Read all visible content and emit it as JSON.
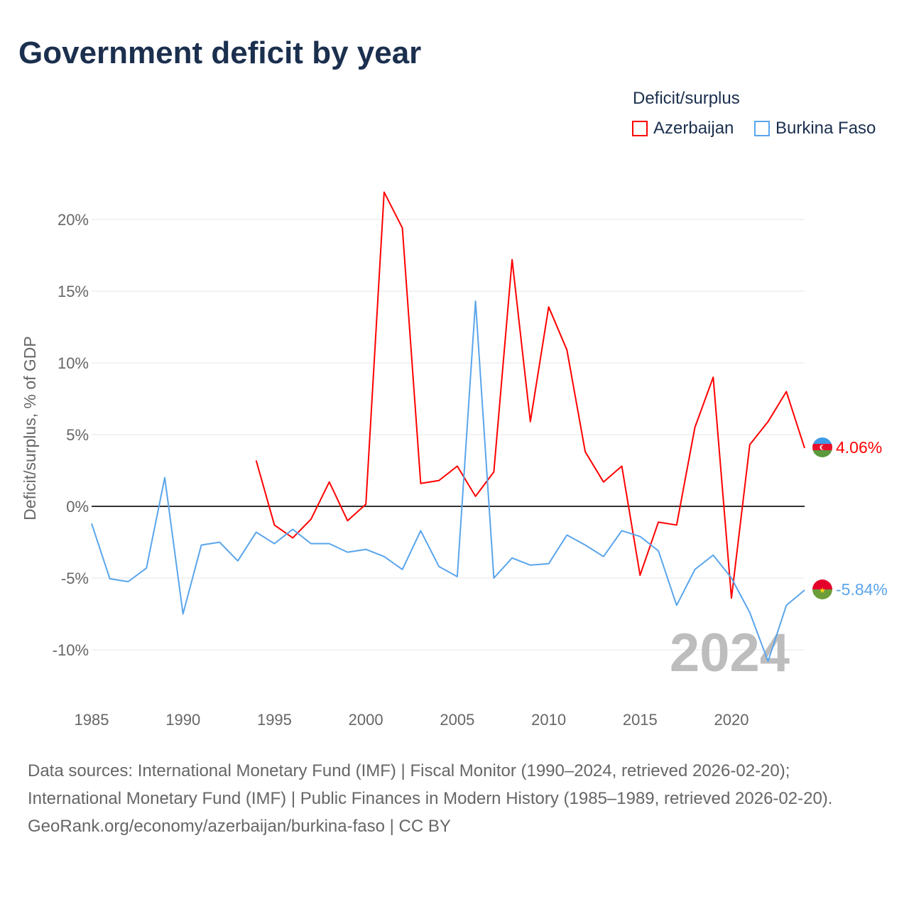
{
  "title": "Government deficit by year",
  "legend": {
    "title": "Deficit/surplus",
    "items": [
      {
        "name": "Azerbaijan",
        "color": "#ff0000"
      },
      {
        "name": "Burkina Faso",
        "color": "#5aa5ec"
      }
    ]
  },
  "watermark_year": "2024",
  "end_labels": {
    "azerbaijan": "4.06%",
    "burkina_faso": "-5.84%"
  },
  "sources": {
    "line1": "Data sources: International Monetary Fund (IMF) | Fiscal Monitor (1990–2024, retrieved 2026-02-20); International Monetary Fund (IMF) | Public Finances in Modern History (1985–1989, retrieved 2026-02-20).",
    "line2": "GeoRank.org/economy/azerbaijan/burkina-faso | CC BY"
  },
  "chart_data": {
    "type": "line",
    "title": "Government deficit by year",
    "xlabel": "",
    "ylabel": "Deficit/surplus, % of GDP",
    "xlim": [
      1985,
      2024
    ],
    "ylim": [
      -13,
      22.5
    ],
    "xticks": [
      1985,
      1990,
      1995,
      2000,
      2005,
      2010,
      2015,
      2020
    ],
    "yticks": [
      {
        "v": -10,
        "label": "-10%"
      },
      {
        "v": -5,
        "label": "-5%"
      },
      {
        "v": 0,
        "label": "0%"
      },
      {
        "v": 5,
        "label": "5%"
      },
      {
        "v": 10,
        "label": "10%"
      },
      {
        "v": 15,
        "label": "15%"
      },
      {
        "v": 20,
        "label": "20%"
      }
    ],
    "grid": true,
    "legend_position": "top-right",
    "series": [
      {
        "name": "Azerbaijan",
        "color": "#ff0000",
        "start": 1994,
        "values": [
          3.2,
          -1.3,
          -2.2,
          -0.9,
          1.7,
          -1.0,
          0.15,
          21.9,
          19.4,
          1.6,
          1.8,
          2.8,
          0.7,
          2.4,
          17.2,
          5.9,
          13.9,
          10.9,
          3.8,
          1.7,
          2.8,
          -4.8,
          -1.1,
          -1.3,
          5.5,
          9.0,
          -6.4,
          4.3,
          5.9,
          8.0,
          4.06
        ]
      },
      {
        "name": "Burkina Faso",
        "color": "#5aa5ec",
        "start": 1985,
        "values": [
          -1.2,
          -5.05,
          -5.25,
          -4.3,
          2.0,
          -7.5,
          -2.7,
          -2.5,
          -3.8,
          -1.8,
          -2.6,
          -1.6,
          -2.6,
          -2.6,
          -3.2,
          -3.0,
          -3.5,
          -4.4,
          -1.7,
          -4.2,
          -4.9,
          14.3,
          -5.0,
          -3.6,
          -4.1,
          -4.0,
          -2.0,
          -2.7,
          -3.5,
          -1.7,
          -2.1,
          -3.1,
          -6.9,
          -4.4,
          -3.4,
          -5.0,
          -7.4,
          -10.8,
          -6.9,
          -5.84
        ]
      }
    ]
  }
}
